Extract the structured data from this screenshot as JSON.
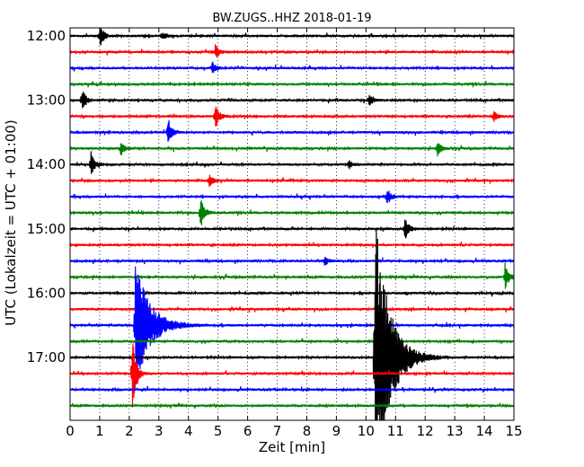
{
  "chart_data": {
    "type": "line",
    "title": "BW.ZUGS..HHZ 2018-01-19",
    "xlabel": "Zeit  [min]",
    "ylabel": "UTC (Lokalzeit = UTC + 01:00)",
    "xlim": [
      0,
      15
    ],
    "x_ticks": [
      "0",
      "1",
      "2",
      "3",
      "4",
      "5",
      "6",
      "7",
      "8",
      "9",
      "10",
      "11",
      "12",
      "13",
      "14",
      "15"
    ],
    "y_ticks": [
      "12:00",
      "13:00",
      "14:00",
      "15:00",
      "16:00",
      "17:00"
    ],
    "grid": true,
    "trace_colors": [
      "#000000",
      "#ff0000",
      "#0000ff",
      "#008000"
    ],
    "row_interval_minutes": 15,
    "start_time": "12:00",
    "rows": 24,
    "events": [
      {
        "row": 0,
        "time_min": 1.0,
        "amp": 0.8
      },
      {
        "row": 0,
        "time_min": 3.1,
        "amp": 0.3
      },
      {
        "row": 1,
        "time_min": 4.9,
        "amp": 0.5
      },
      {
        "row": 2,
        "time_min": 4.8,
        "amp": 0.4
      },
      {
        "row": 4,
        "time_min": 0.4,
        "amp": 0.8
      },
      {
        "row": 4,
        "time_min": 10.1,
        "amp": 0.4
      },
      {
        "row": 5,
        "time_min": 4.9,
        "amp": 0.9
      },
      {
        "row": 5,
        "time_min": 14.3,
        "amp": 0.4
      },
      {
        "row": 6,
        "time_min": 3.3,
        "amp": 1.0
      },
      {
        "row": 7,
        "time_min": 1.7,
        "amp": 0.5
      },
      {
        "row": 7,
        "time_min": 12.4,
        "amp": 0.5
      },
      {
        "row": 8,
        "time_min": 0.7,
        "amp": 0.8
      },
      {
        "row": 8,
        "time_min": 9.4,
        "amp": 0.3
      },
      {
        "row": 9,
        "time_min": 4.7,
        "amp": 0.4
      },
      {
        "row": 10,
        "time_min": 10.7,
        "amp": 0.6
      },
      {
        "row": 11,
        "time_min": 4.4,
        "amp": 1.1
      },
      {
        "row": 12,
        "time_min": 11.3,
        "amp": 0.8
      },
      {
        "row": 14,
        "time_min": 8.6,
        "amp": 0.3
      },
      {
        "row": 15,
        "time_min": 14.7,
        "amp": 0.8
      },
      {
        "row": 18,
        "time_min": 2.2,
        "amp": 4.2
      },
      {
        "row": 20,
        "time_min": 10.3,
        "amp": 9.0
      },
      {
        "row": 21,
        "time_min": 2.1,
        "amp": 2.5
      }
    ]
  }
}
